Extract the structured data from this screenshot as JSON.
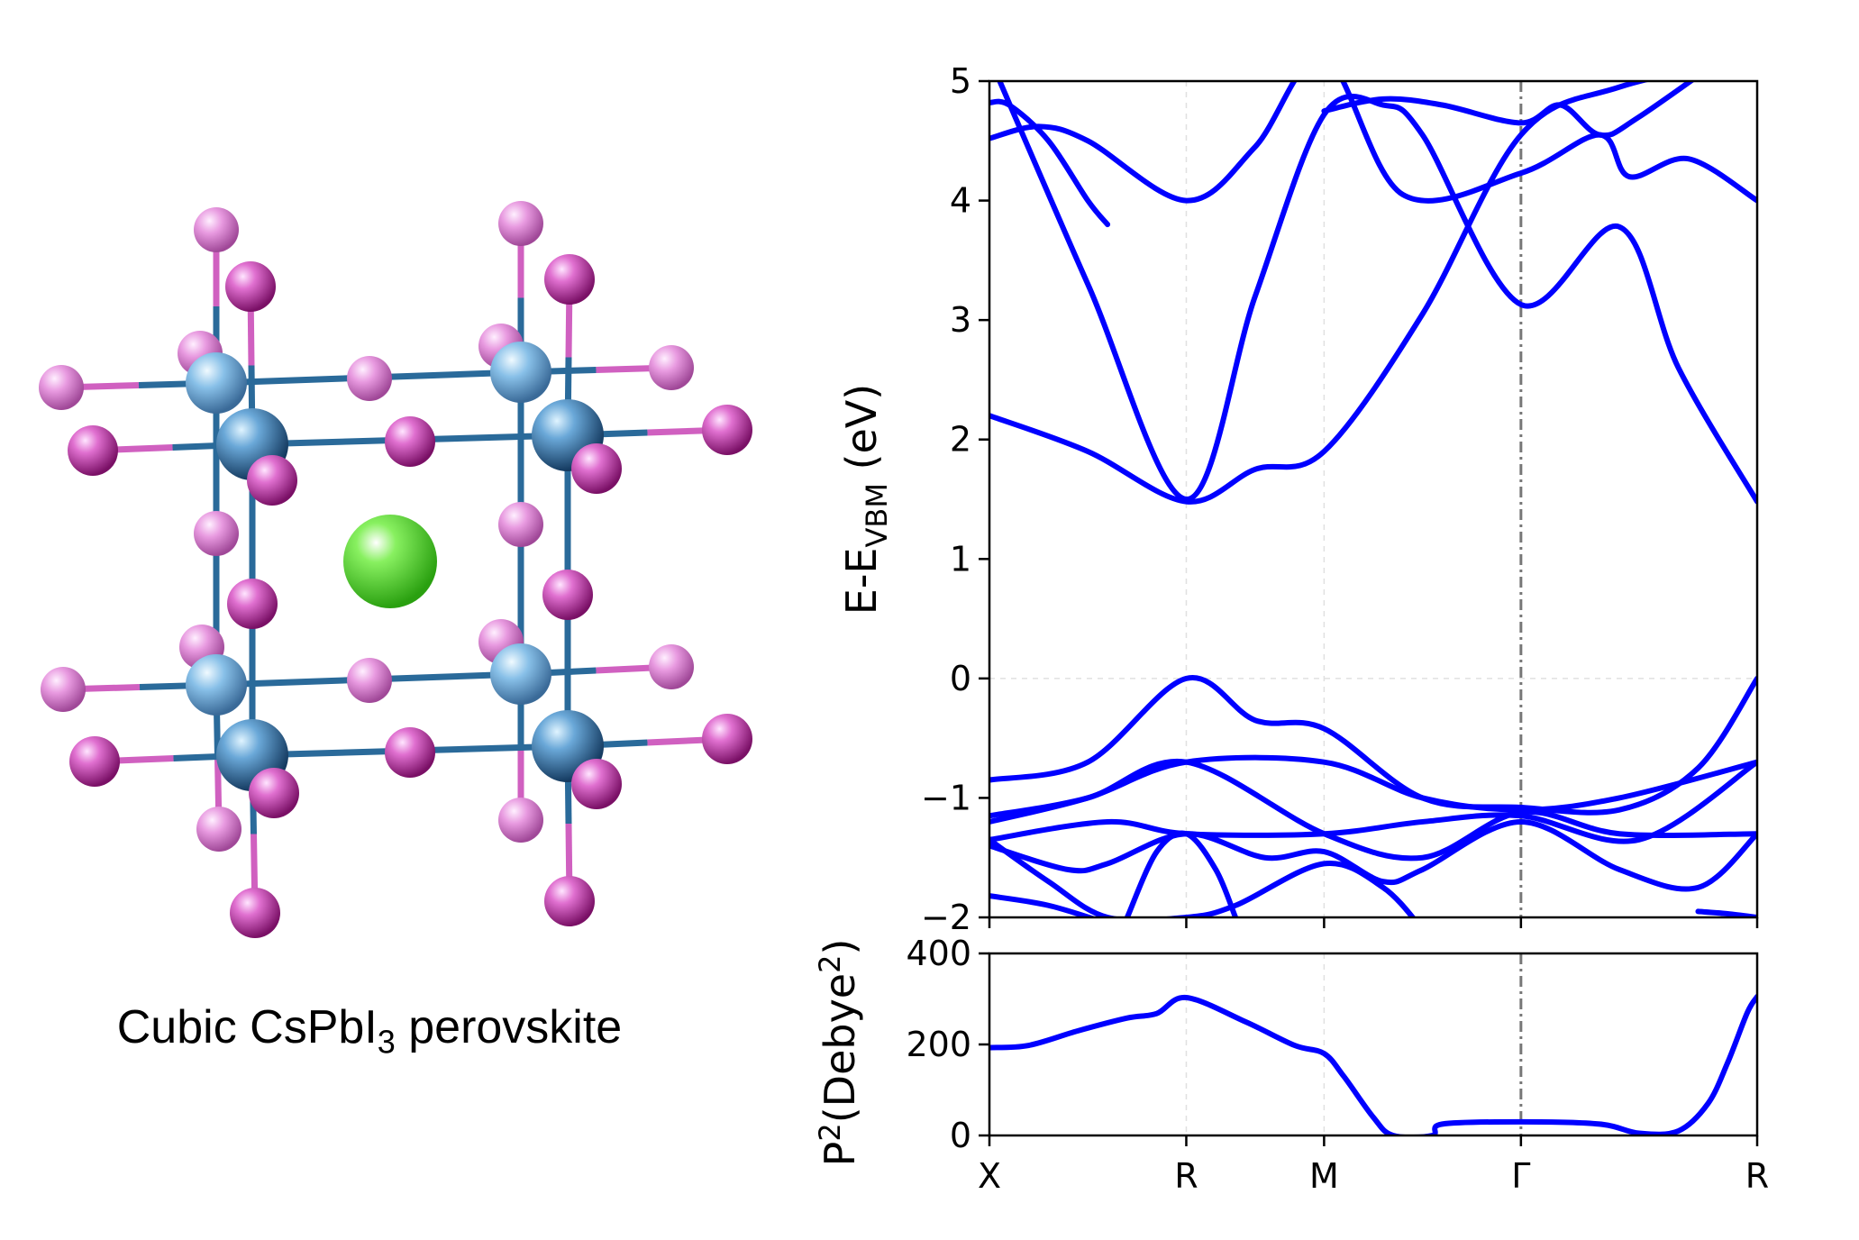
{
  "structure": {
    "caption_prefix": "Cubic CsPbI",
    "caption_subscript": "3",
    "caption_suffix": " perovskite",
    "colors": {
      "iodine": "#c040a8",
      "lead": "#1f5a8c",
      "cesium": "#44dd22",
      "bond_iodine": "#d060c0",
      "bond_lead": "#2a6a9a"
    }
  },
  "chart_data": [
    {
      "type": "line",
      "title": "",
      "ylabel_main": "E-E",
      "ylabel_sub": "VBM",
      "ylabel_unit": " (eV)",
      "ylim": [
        -2,
        5
      ],
      "yticks": [
        "5",
        "4",
        "3",
        "2",
        "1",
        "0",
        "−1",
        "−2"
      ],
      "ytick_values": [
        5,
        4,
        3,
        2,
        1,
        0,
        -1,
        -2
      ],
      "kpoints": [
        "X",
        "R",
        "M",
        "Γ",
        "R"
      ],
      "kpoint_positions": [
        0,
        1,
        1.7,
        2.7,
        3.9
      ],
      "xlim": [
        0,
        3.9
      ],
      "line_color": "#0000ff",
      "series": [
        {
          "name": "cb1",
          "x": [
            0,
            0.5,
            1,
            1.35,
            1.7,
            2.2,
            2.7,
            3.2,
            3.9
          ],
          "y": [
            2.2,
            1.9,
            1.48,
            1.75,
            1.9,
            3.05,
            4.55,
            4.95,
            5.2
          ]
        },
        {
          "name": "cb2",
          "x": [
            0,
            0.5,
            1,
            1.35,
            1.7,
            2.0,
            2.2,
            2.7,
            3.2,
            3.5,
            3.9
          ],
          "y": [
            5.2,
            3.3,
            1.5,
            3.2,
            4.72,
            4.8,
            4.55,
            3.13,
            3.78,
            2.6,
            1.48
          ]
        },
        {
          "name": "cb3",
          "x": [
            0,
            0.25,
            0.5,
            1,
            1.35,
            1.7,
            2.1,
            2.7,
            3.1,
            3.25,
            3.55,
            3.9
          ],
          "y": [
            4.52,
            4.62,
            4.5,
            4.0,
            4.45,
            5.2,
            4.05,
            4.23,
            4.55,
            4.2,
            4.35,
            4.0
          ]
        },
        {
          "name": "cb4",
          "x": [
            0,
            0.1,
            0.3,
            0.5,
            0.6
          ],
          "y": [
            4.82,
            4.8,
            4.5,
            4.0,
            3.8
          ]
        },
        {
          "name": "cb5",
          "x": [
            1.7,
            2.0,
            2.3,
            2.7,
            2.9,
            3.1,
            3.3,
            3.9
          ],
          "y": [
            4.75,
            4.85,
            4.8,
            4.65,
            4.8,
            4.55,
            4.7,
            5.4
          ]
        },
        {
          "name": "vb1",
          "x": [
            0,
            0.5,
            1,
            1.35,
            1.7,
            2.2,
            2.7,
            3.2,
            3.6,
            3.9
          ],
          "y": [
            -0.85,
            -0.7,
            0.0,
            -0.35,
            -0.42,
            -1.0,
            -1.08,
            -1.1,
            -0.75,
            0.0
          ]
        },
        {
          "name": "vb2",
          "x": [
            0,
            0.5,
            1,
            1.7,
            2.2,
            2.7,
            3.2,
            3.9
          ],
          "y": [
            -1.2,
            -1.0,
            -0.7,
            -0.7,
            -1.0,
            -1.1,
            -1.0,
            -0.7
          ]
        },
        {
          "name": "vb3",
          "x": [
            0,
            0.5,
            1,
            1.7,
            2.2,
            2.7,
            3.2,
            3.9
          ],
          "y": [
            -1.15,
            -1.0,
            -0.7,
            -1.3,
            -1.5,
            -1.12,
            -1.3,
            -1.3
          ]
        },
        {
          "name": "vb4",
          "x": [
            0,
            0.6,
            1,
            1.7,
            2.2,
            2.7,
            3.3,
            3.9
          ],
          "y": [
            -1.35,
            -1.2,
            -1.3,
            -1.3,
            -1.2,
            -1.15,
            -1.35,
            -0.7
          ]
        },
        {
          "name": "vb5",
          "x": [
            0,
            0.4,
            0.6,
            1,
            1.4,
            1.7,
            2.0,
            2.2,
            2.7,
            3.2,
            3.6,
            3.9
          ],
          "y": [
            -1.4,
            -1.6,
            -1.55,
            -1.3,
            -1.5,
            -1.45,
            -1.7,
            -1.6,
            -1.2,
            -1.6,
            -1.75,
            -1.3
          ]
        },
        {
          "name": "vb6",
          "x": [
            0,
            0.3,
            0.6,
            1,
            1.25,
            1.7,
            2.0,
            2.2
          ],
          "y": [
            -1.35,
            -1.7,
            -2.0,
            -2.0,
            -1.9,
            -1.55,
            -1.75,
            -2.1
          ]
        },
        {
          "name": "vb7",
          "x": [
            0.7,
            0.85,
            1,
            1.15,
            1.25
          ],
          "y": [
            -2.0,
            -1.45,
            -1.3,
            -1.6,
            -2.0
          ]
        },
        {
          "name": "vb8",
          "x": [
            0,
            0.3,
            0.6
          ],
          "y": [
            -1.82,
            -1.9,
            -2.05
          ]
        },
        {
          "name": "vb9",
          "x": [
            3.6,
            3.75,
            3.9
          ],
          "y": [
            -1.95,
            -1.97,
            -2.0
          ]
        }
      ]
    },
    {
      "type": "line",
      "title": "",
      "ylabel_main": "P",
      "ylabel_sup": "2",
      "ylabel_rest": "(Debye",
      "ylabel_sup2": "2",
      "ylabel_end": ")",
      "ylim": [
        0,
        400
      ],
      "yticks": [
        "400",
        "200",
        "0"
      ],
      "ytick_values": [
        400,
        200,
        0
      ],
      "kpoints": [
        "X",
        "R",
        "M",
        "Γ",
        "R"
      ],
      "kpoint_positions": [
        0,
        1,
        1.7,
        2.7,
        3.9
      ],
      "xlim": [
        0,
        3.9
      ],
      "line_color": "#0000ff",
      "series": [
        {
          "name": "p2",
          "x": [
            0,
            0.2,
            0.45,
            0.7,
            0.85,
            1,
            1.3,
            1.55,
            1.7,
            1.8,
            1.95,
            2.05,
            2.25,
            2.3,
            2.7,
            3.1,
            3.3,
            3.5,
            3.65,
            3.75,
            3.85,
            3.9
          ],
          "y": [
            193,
            198,
            230,
            258,
            268,
            303,
            250,
            198,
            180,
            130,
            40,
            0,
            0,
            25,
            30,
            25,
            5,
            10,
            70,
            160,
            270,
            305
          ]
        }
      ]
    }
  ]
}
